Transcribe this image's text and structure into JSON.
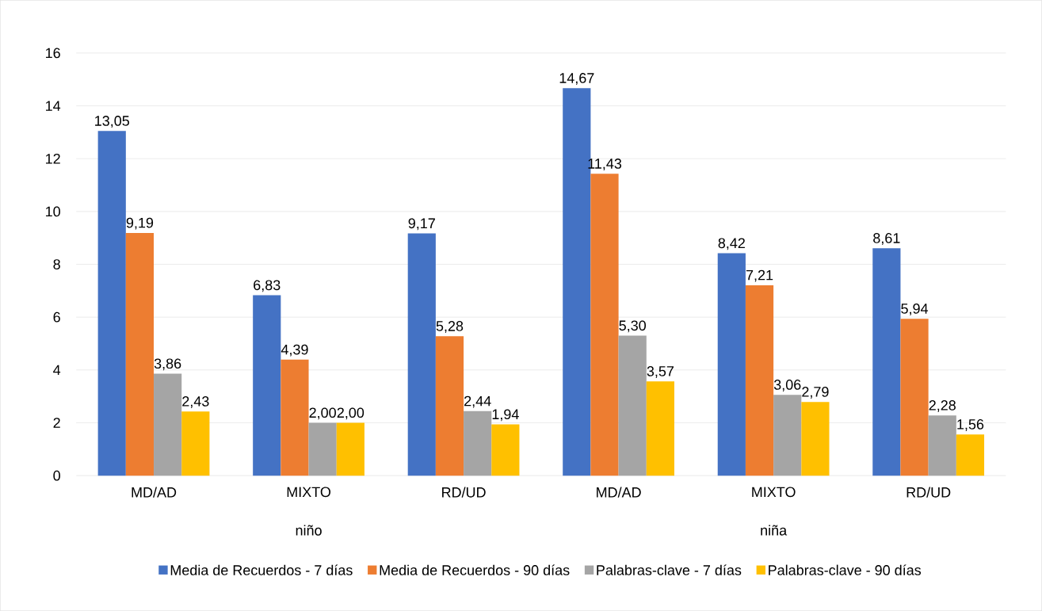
{
  "chart_data": {
    "type": "bar",
    "categories": [
      "MD/AD",
      "MIXTO",
      "RD/UD",
      "MD/AD",
      "MIXTO",
      "RD/UD"
    ],
    "series": [
      {
        "name": "Media de Recuerdos - 7 días",
        "color": "#4472c4",
        "values": [
          13.05,
          6.83,
          9.17,
          14.67,
          8.42,
          8.61
        ],
        "value_labels": [
          "13,05",
          "6,83",
          "9,17",
          "14,67",
          "8,42",
          "8,61"
        ]
      },
      {
        "name": "Media de Recuerdos - 90 días",
        "color": "#ed7d31",
        "values": [
          9.19,
          4.39,
          5.28,
          11.43,
          7.21,
          5.94
        ],
        "value_labels": [
          "9,19",
          "4,39",
          "5,28",
          "11,43",
          "7,21",
          "5,94"
        ]
      },
      {
        "name": "Palabras-clave - 7 días",
        "color": "#a5a5a5",
        "values": [
          3.86,
          2.0,
          2.44,
          5.3,
          3.06,
          2.28
        ],
        "value_labels": [
          "3,86",
          "2,00",
          "2,44",
          "5,30",
          "3,06",
          "2,28"
        ]
      },
      {
        "name": "Palabras-clave - 90 días",
        "color": "#ffc000",
        "values": [
          2.43,
          2.0,
          1.94,
          3.57,
          2.79,
          1.56
        ],
        "value_labels": [
          "2,43",
          "2,00",
          "1,94",
          "3,57",
          "2,79",
          "1,56"
        ]
      }
    ],
    "annotations": [
      "niño",
      "niña"
    ],
    "ylim": [
      0,
      16
    ],
    "yticks": [
      0,
      2,
      4,
      6,
      8,
      10,
      12,
      14,
      16
    ],
    "grid": "y",
    "legend": "bottom"
  }
}
